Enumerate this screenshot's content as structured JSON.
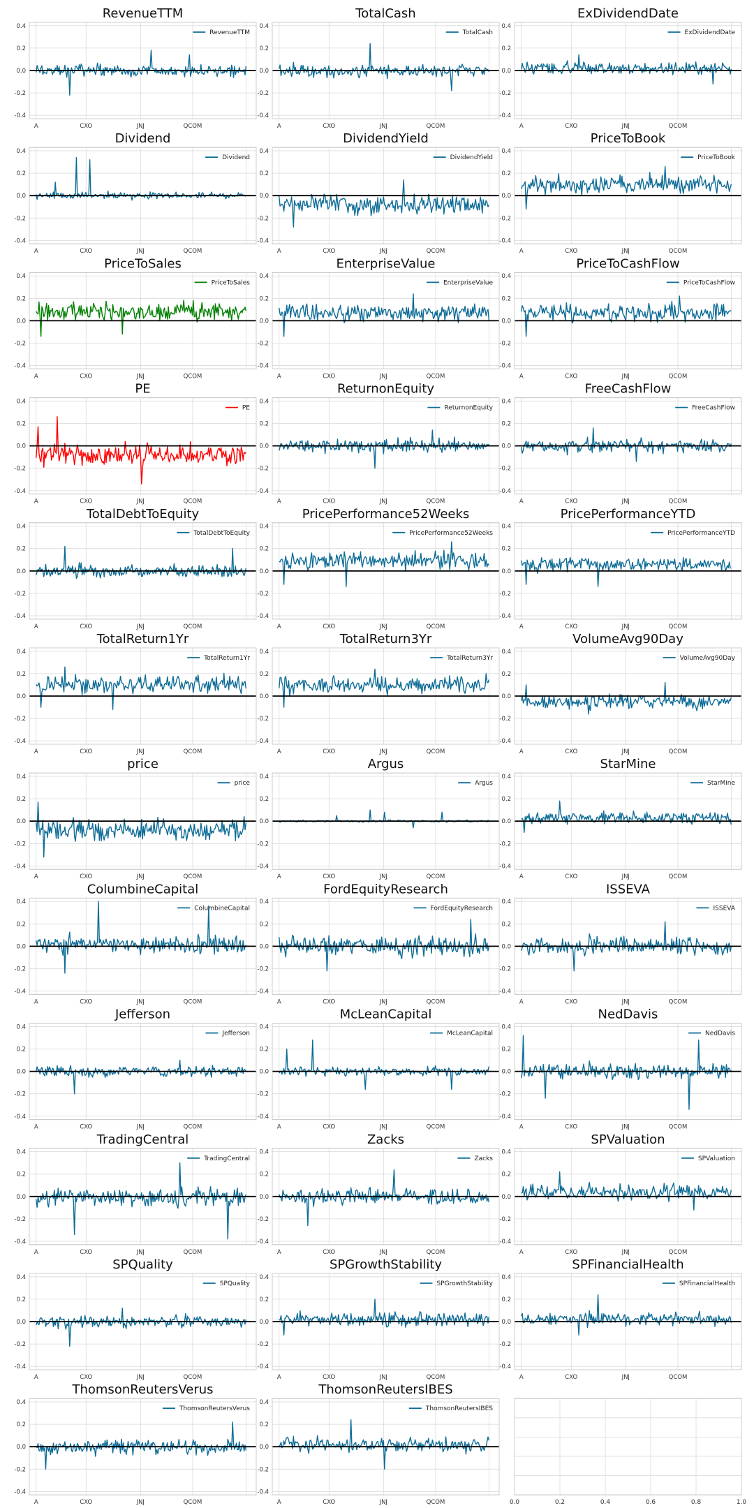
{
  "figure": {
    "default_color": "#0e6c97",
    "zero_line_color": "#000000",
    "grid": true,
    "legend_placement": "upper-right",
    "x_tick_labels": [
      "A",
      "CXO",
      "JNJ",
      "QCOM"
    ],
    "y_ticks": [
      "-0.4",
      "-0.2",
      "0.0",
      "0.2",
      "0.4"
    ],
    "empty_panel_x_ticks": [
      "0.0",
      "0.2",
      "0.4",
      "0.6",
      "0.8",
      "1.0"
    ],
    "empty_panel_y_ticks": [
      "0.0",
      "0.2",
      "0.4",
      "0.6",
      "0.8",
      "1.0"
    ]
  },
  "chart_data": [
    {
      "type": "line",
      "title": "RevenueTTM",
      "legend": "RevenueTTM",
      "color": "#0e6c97",
      "ylim": [
        -0.43,
        0.43
      ],
      "profile": {
        "mean": 0.0,
        "noise": 0.045,
        "spikes": [
          [
            35,
            -0.22
          ],
          [
            120,
            0.18
          ],
          [
            160,
            0.14
          ]
        ]
      }
    },
    {
      "type": "line",
      "title": "TotalCash",
      "legend": "TotalCash",
      "color": "#0e6c97",
      "ylim": [
        -0.43,
        0.43
      ],
      "profile": {
        "mean": 0.0,
        "noise": 0.05,
        "spikes": [
          [
            95,
            0.24
          ],
          [
            180,
            -0.18
          ]
        ]
      }
    },
    {
      "type": "line",
      "title": "ExDividendDate",
      "legend": "ExDividendDate",
      "color": "#0e6c97",
      "ylim": [
        -0.43,
        0.43
      ],
      "profile": {
        "mean": 0.02,
        "noise": 0.045,
        "spikes": [
          [
            60,
            0.14
          ],
          [
            200,
            -0.12
          ]
        ]
      }
    },
    {
      "type": "line",
      "title": "Dividend",
      "legend": "Dividend",
      "color": "#0e6c97",
      "ylim": [
        -0.43,
        0.43
      ],
      "profile": {
        "mean": 0.0,
        "noise": 0.025,
        "spikes": [
          [
            42,
            0.34
          ],
          [
            56,
            0.32
          ],
          [
            20,
            0.12
          ]
        ]
      }
    },
    {
      "type": "line",
      "title": "DividendYield",
      "legend": "DividendYield",
      "color": "#0e6c97",
      "ylim": [
        -0.43,
        0.43
      ],
      "profile": {
        "mean": -0.08,
        "noise": 0.07,
        "spikes": [
          [
            130,
            0.14
          ],
          [
            15,
            -0.28
          ]
        ]
      }
    },
    {
      "type": "line",
      "title": "PriceToBook",
      "legend": "PriceToBook",
      "color": "#0e6c97",
      "ylim": [
        -0.43,
        0.43
      ],
      "profile": {
        "mean": 0.1,
        "noise": 0.07,
        "spikes": [
          [
            150,
            0.26
          ],
          [
            5,
            -0.12
          ]
        ]
      }
    },
    {
      "type": "line",
      "title": "PriceToSales",
      "legend": "PriceToSales",
      "color": "#008000",
      "ylim": [
        -0.43,
        0.43
      ],
      "profile": {
        "mean": 0.08,
        "noise": 0.07,
        "spikes": [
          [
            5,
            -0.14
          ],
          [
            90,
            -0.12
          ]
        ]
      }
    },
    {
      "type": "line",
      "title": "EnterpriseValue",
      "legend": "EnterpriseValue",
      "color": "#0e6c97",
      "ylim": [
        -0.43,
        0.43
      ],
      "profile": {
        "mean": 0.07,
        "noise": 0.065,
        "spikes": [
          [
            5,
            -0.14
          ],
          [
            140,
            0.24
          ]
        ]
      }
    },
    {
      "type": "line",
      "title": "PriceToCashFlow",
      "legend": "PriceToCashFlow",
      "color": "#0e6c97",
      "ylim": [
        -0.43,
        0.43
      ],
      "profile": {
        "mean": 0.07,
        "noise": 0.065,
        "spikes": [
          [
            5,
            -0.14
          ],
          [
            165,
            0.22
          ]
        ]
      }
    },
    {
      "type": "line",
      "title": "PE",
      "legend": "PE",
      "color": "#ff0000",
      "ylim": [
        -0.43,
        0.43
      ],
      "profile": {
        "mean": -0.08,
        "noise": 0.08,
        "spikes": [
          [
            22,
            0.26
          ],
          [
            2,
            0.17
          ],
          [
            110,
            -0.34
          ]
        ]
      }
    },
    {
      "type": "line",
      "title": "ReturnonEquity",
      "legend": "ReturnonEquity",
      "color": "#0e6c97",
      "ylim": [
        -0.43,
        0.43
      ],
      "profile": {
        "mean": 0.0,
        "noise": 0.05,
        "spikes": [
          [
            100,
            -0.2
          ],
          [
            160,
            0.14
          ]
        ]
      }
    },
    {
      "type": "line",
      "title": "FreeCashFlow",
      "legend": "FreeCashFlow",
      "color": "#0e6c97",
      "ylim": [
        -0.43,
        0.43
      ],
      "profile": {
        "mean": 0.0,
        "noise": 0.05,
        "spikes": [
          [
            75,
            0.16
          ],
          [
            120,
            -0.14
          ]
        ]
      }
    },
    {
      "type": "line",
      "title": "TotalDebtToEquity",
      "legend": "TotalDebtToEquity",
      "color": "#0e6c97",
      "ylim": [
        -0.43,
        0.43
      ],
      "profile": {
        "mean": 0.0,
        "noise": 0.05,
        "spikes": [
          [
            30,
            0.22
          ],
          [
            205,
            0.2
          ]
        ]
      }
    },
    {
      "type": "line",
      "title": "PricePerformance52Weeks",
      "legend": "PricePerformance52Weeks",
      "color": "#0e6c97",
      "ylim": [
        -0.43,
        0.43
      ],
      "profile": {
        "mean": 0.09,
        "noise": 0.065,
        "spikes": [
          [
            5,
            -0.12
          ],
          [
            70,
            -0.14
          ],
          [
            180,
            0.26
          ]
        ]
      }
    },
    {
      "type": "line",
      "title": "PricePerformanceYTD",
      "legend": "PricePerformanceYTD",
      "color": "#0e6c97",
      "ylim": [
        -0.43,
        0.43
      ],
      "profile": {
        "mean": 0.06,
        "noise": 0.06,
        "spikes": [
          [
            5,
            -0.12
          ],
          [
            80,
            -0.14
          ]
        ]
      }
    },
    {
      "type": "line",
      "title": "TotalReturn1Yr",
      "legend": "TotalReturn1Yr",
      "color": "#0e6c97",
      "ylim": [
        -0.43,
        0.43
      ],
      "profile": {
        "mean": 0.1,
        "noise": 0.065,
        "spikes": [
          [
            5,
            -0.1
          ],
          [
            80,
            -0.12
          ],
          [
            30,
            0.26
          ]
        ]
      }
    },
    {
      "type": "line",
      "title": "TotalReturn3Yr",
      "legend": "TotalReturn3Yr",
      "color": "#0e6c97",
      "ylim": [
        -0.43,
        0.43
      ],
      "profile": {
        "mean": 0.1,
        "noise": 0.065,
        "spikes": [
          [
            5,
            -0.1
          ],
          [
            100,
            0.24
          ]
        ]
      }
    },
    {
      "type": "line",
      "title": "VolumeAvg90Day",
      "legend": "VolumeAvg90Day",
      "color": "#0e6c97",
      "ylim": [
        -0.43,
        0.43
      ],
      "profile": {
        "mean": -0.05,
        "noise": 0.05,
        "spikes": [
          [
            5,
            0.1
          ],
          [
            150,
            0.12
          ],
          [
            70,
            -0.16
          ]
        ]
      }
    },
    {
      "type": "line",
      "title": "price",
      "legend": "price",
      "color": "#0e6c97",
      "ylim": [
        -0.43,
        0.43
      ],
      "profile": {
        "mean": -0.08,
        "noise": 0.08,
        "spikes": [
          [
            2,
            0.17
          ],
          [
            8,
            -0.32
          ]
        ]
      }
    },
    {
      "type": "line",
      "title": "Argus",
      "legend": "Argus",
      "color": "#0e6c97",
      "ylim": [
        -0.43,
        0.43
      ],
      "profile": {
        "mean": 0.0,
        "noise": 0.008,
        "spikes": [
          [
            95,
            0.1
          ],
          [
            110,
            0.08
          ],
          [
            170,
            0.08
          ],
          [
            140,
            -0.06
          ],
          [
            60,
            0.05
          ]
        ]
      }
    },
    {
      "type": "line",
      "title": "StarMine",
      "legend": "StarMine",
      "color": "#0e6c97",
      "ylim": [
        -0.43,
        0.43
      ],
      "profile": {
        "mean": 0.03,
        "noise": 0.045,
        "spikes": [
          [
            3,
            -0.1
          ],
          [
            40,
            0.18
          ]
        ]
      }
    },
    {
      "type": "line",
      "title": "ColumbineCapital",
      "legend": "ColumbineCapital",
      "color": "#0e6c97",
      "ylim": [
        -0.43,
        0.43
      ],
      "profile": {
        "mean": 0.02,
        "noise": 0.07,
        "spikes": [
          [
            65,
            0.4
          ],
          [
            180,
            0.36
          ],
          [
            30,
            -0.24
          ]
        ]
      }
    },
    {
      "type": "line",
      "title": "FordEquityResearch",
      "legend": "FordEquityResearch",
      "color": "#0e6c97",
      "ylim": [
        -0.43,
        0.43
      ],
      "profile": {
        "mean": 0.0,
        "noise": 0.075,
        "spikes": [
          [
            200,
            0.24
          ],
          [
            50,
            -0.22
          ]
        ]
      }
    },
    {
      "type": "line",
      "title": "ISSEVA",
      "legend": "ISSEVA",
      "color": "#0e6c97",
      "ylim": [
        -0.43,
        0.43
      ],
      "profile": {
        "mean": 0.0,
        "noise": 0.07,
        "spikes": [
          [
            55,
            -0.22
          ],
          [
            150,
            0.22
          ]
        ]
      }
    },
    {
      "type": "line",
      "title": "Jefferson",
      "legend": "Jefferson",
      "color": "#0e6c97",
      "ylim": [
        -0.43,
        0.43
      ],
      "profile": {
        "mean": 0.0,
        "noise": 0.04,
        "spikes": [
          [
            40,
            -0.2
          ],
          [
            150,
            0.1
          ]
        ]
      }
    },
    {
      "type": "line",
      "title": "McLeanCapital",
      "legend": "McLeanCapital",
      "color": "#0e6c97",
      "ylim": [
        -0.43,
        0.43
      ],
      "profile": {
        "mean": 0.0,
        "noise": 0.035,
        "spikes": [
          [
            35,
            0.28
          ],
          [
            8,
            0.2
          ],
          [
            90,
            -0.16
          ],
          [
            180,
            -0.16
          ]
        ]
      }
    },
    {
      "type": "line",
      "title": "NedDavis",
      "legend": "NedDavis",
      "color": "#0e6c97",
      "ylim": [
        -0.43,
        0.43
      ],
      "profile": {
        "mean": 0.0,
        "noise": 0.06,
        "spikes": [
          [
            2,
            0.32
          ],
          [
            175,
            -0.34
          ],
          [
            185,
            0.28
          ],
          [
            25,
            -0.24
          ]
        ]
      }
    },
    {
      "type": "line",
      "title": "TradingCentral",
      "legend": "TradingCentral",
      "color": "#0e6c97",
      "ylim": [
        -0.43,
        0.43
      ],
      "profile": {
        "mean": 0.0,
        "noise": 0.075,
        "spikes": [
          [
            200,
            -0.38
          ],
          [
            40,
            -0.34
          ],
          [
            150,
            0.3
          ]
        ]
      }
    },
    {
      "type": "line",
      "title": "Zacks",
      "legend": "Zacks",
      "color": "#0e6c97",
      "ylim": [
        -0.43,
        0.43
      ],
      "profile": {
        "mean": 0.0,
        "noise": 0.06,
        "spikes": [
          [
            30,
            -0.26
          ],
          [
            120,
            0.24
          ]
        ]
      }
    },
    {
      "type": "line",
      "title": "SPValuation",
      "legend": "SPValuation",
      "color": "#0e6c97",
      "ylim": [
        -0.43,
        0.43
      ],
      "profile": {
        "mean": 0.04,
        "noise": 0.055,
        "spikes": [
          [
            40,
            0.22
          ],
          [
            180,
            -0.12
          ]
        ]
      }
    },
    {
      "type": "line",
      "title": "SPQuality",
      "legend": "SPQuality",
      "color": "#0e6c97",
      "ylim": [
        -0.43,
        0.43
      ],
      "profile": {
        "mean": 0.0,
        "noise": 0.045,
        "spikes": [
          [
            35,
            -0.22
          ],
          [
            90,
            0.12
          ]
        ]
      }
    },
    {
      "type": "line",
      "title": "SPGrowthStability",
      "legend": "SPGrowthStability",
      "color": "#0e6c97",
      "ylim": [
        -0.43,
        0.43
      ],
      "profile": {
        "mean": 0.02,
        "noise": 0.05,
        "spikes": [
          [
            5,
            -0.12
          ],
          [
            100,
            0.2
          ]
        ]
      }
    },
    {
      "type": "line",
      "title": "SPFinancialHealth",
      "legend": "SPFinancialHealth",
      "color": "#0e6c97",
      "ylim": [
        -0.43,
        0.43
      ],
      "profile": {
        "mean": 0.02,
        "noise": 0.05,
        "spikes": [
          [
            80,
            0.24
          ],
          [
            60,
            -0.12
          ]
        ]
      }
    },
    {
      "type": "line",
      "title": "ThomsonReutersVerus",
      "legend": "ThomsonReutersVerus",
      "color": "#0e6c97",
      "ylim": [
        -0.43,
        0.43
      ],
      "profile": {
        "mean": 0.0,
        "noise": 0.06,
        "spikes": [
          [
            10,
            -0.2
          ],
          [
            205,
            0.22
          ]
        ]
      }
    },
    {
      "type": "line",
      "title": "ThomsonReutersIBES",
      "legend": "ThomsonReutersIBES",
      "color": "#0e6c97",
      "ylim": [
        -0.43,
        0.43
      ],
      "profile": {
        "mean": 0.02,
        "noise": 0.055,
        "spikes": [
          [
            75,
            0.24
          ],
          [
            110,
            -0.2
          ]
        ]
      }
    },
    {
      "type": "empty",
      "xlim": [
        0,
        1
      ],
      "ylim": [
        0,
        1
      ]
    }
  ]
}
